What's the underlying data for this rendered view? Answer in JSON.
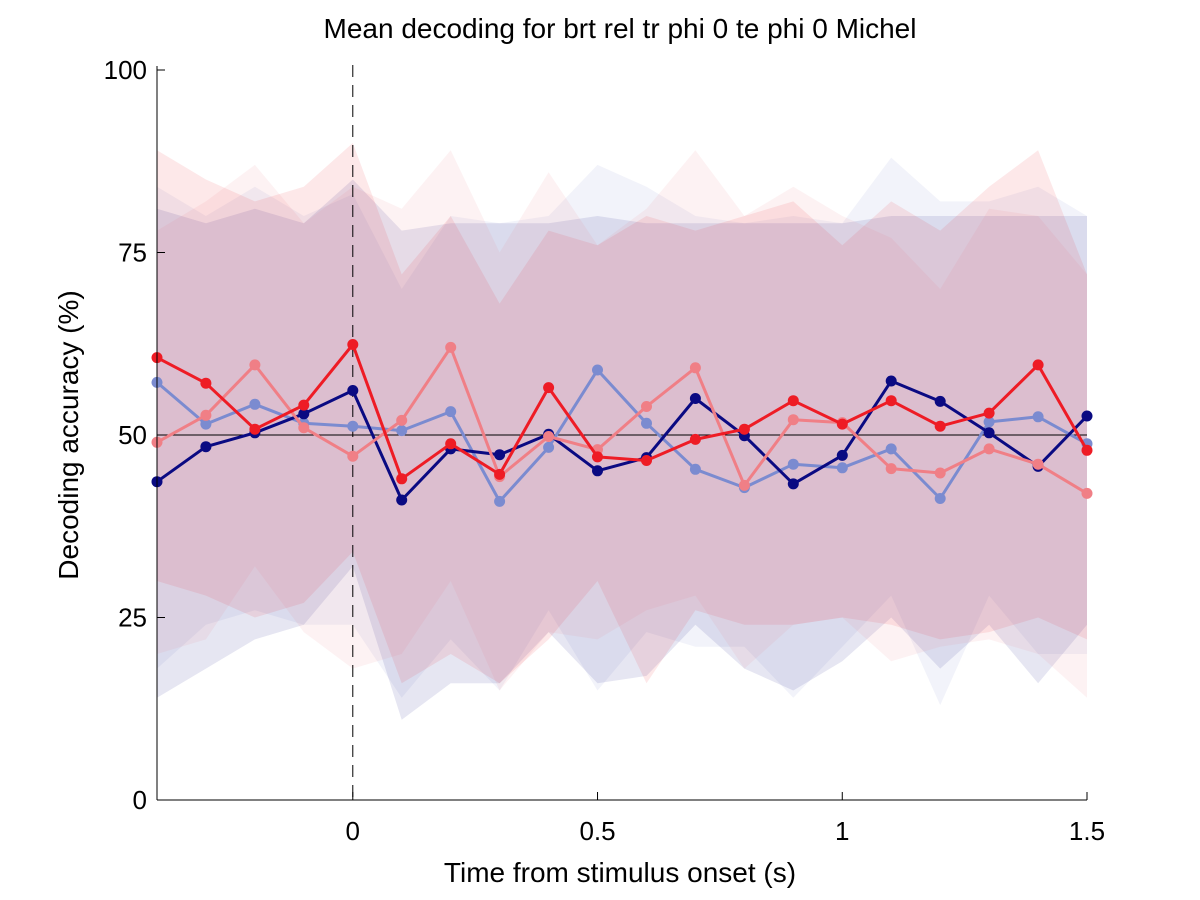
{
  "chart_data": {
    "type": "line",
    "title": "Mean decoding for brt rel tr phi 0 te phi 0  Michel",
    "xlabel": "Time from stimulus onset (s)",
    "ylabel": "Decoding accuracy (%)",
    "xlim": [
      -0.4,
      1.5
    ],
    "ylim": [
      0,
      100
    ],
    "xticks": [
      0,
      0.5,
      1,
      1.5
    ],
    "xtick_labels": [
      "0",
      "0.5",
      "1",
      "1.5"
    ],
    "yticks": [
      0,
      25,
      50,
      75,
      100
    ],
    "ytick_labels": [
      "0",
      "25",
      "50",
      "75",
      "100"
    ],
    "grid": false,
    "chance_level": 50,
    "onset_marker_x": 0,
    "x": [
      -0.4,
      -0.3,
      -0.2,
      -0.1,
      0,
      0.1,
      0.2,
      0.3,
      0.4,
      0.5,
      0.6,
      0.7,
      0.8,
      0.9,
      1.0,
      1.1,
      1.2,
      1.3,
      1.4,
      1.5
    ],
    "series": [
      {
        "color": "#7b8bd0",
        "values": [
          57.2,
          51.5,
          54.2,
          51.6,
          51.2,
          50.6,
          53.2,
          40.9,
          48.3,
          58.9,
          51.6,
          45.3,
          42.8,
          46.0,
          45.5,
          48.1,
          41.3,
          51.8,
          52.5,
          48.8
        ],
        "band_upper": [
          84,
          80,
          84,
          80,
          83,
          70,
          80,
          79,
          80,
          87,
          84,
          80,
          79,
          80,
          79,
          88,
          82,
          82,
          84,
          80
        ],
        "band_lower": [
          18,
          24,
          26,
          24,
          24,
          14,
          22,
          15,
          26,
          15,
          23,
          21,
          21,
          14,
          21,
          28,
          13,
          28,
          20,
          20
        ]
      },
      {
        "color": "#0a0a82",
        "values": [
          43.6,
          48.4,
          50.3,
          52.9,
          56.1,
          41.1,
          48.1,
          47.3,
          50.1,
          45.1,
          46.9,
          55.0,
          49.9,
          43.3,
          47.2,
          57.4,
          54.6,
          50.3,
          45.7,
          52.6
        ],
        "band_upper": [
          81,
          79,
          81,
          79,
          85,
          78,
          79,
          79,
          79,
          80,
          79,
          79,
          79,
          79,
          79,
          80,
          80,
          80,
          80,
          80
        ],
        "band_lower": [
          14,
          18,
          22,
          24,
          32,
          11,
          16,
          16,
          23,
          16,
          17,
          24,
          18,
          15,
          19,
          25,
          18,
          24,
          16,
          24
        ]
      },
      {
        "color": "#f07f86",
        "values": [
          49.0,
          52.7,
          59.6,
          51.0,
          47.1,
          52.0,
          62.0,
          44.3,
          49.8,
          48.0,
          53.9,
          59.2,
          43.1,
          52.1,
          51.7,
          45.4,
          44.8,
          48.1,
          46.0,
          42.0
        ],
        "band_upper": [
          78,
          82,
          87,
          79,
          84,
          81,
          89,
          75,
          86,
          76,
          81,
          89,
          80,
          84,
          80,
          77,
          70,
          81,
          80,
          72
        ],
        "band_lower": [
          20,
          22,
          32,
          23,
          18,
          20,
          30,
          15,
          23,
          22,
          26,
          28,
          18,
          24,
          25,
          19,
          21,
          22,
          20,
          14
        ]
      },
      {
        "color": "#ee1c25",
        "values": [
          60.6,
          57.1,
          50.8,
          54.1,
          62.4,
          44.0,
          48.8,
          44.6,
          56.5,
          47.0,
          46.5,
          49.4,
          50.8,
          54.7,
          51.5,
          54.7,
          51.2,
          53.0,
          59.6,
          47.9
        ],
        "band_upper": [
          89,
          85,
          82,
          84,
          90,
          72,
          80,
          68,
          78,
          76,
          80,
          78,
          80,
          82,
          76,
          82,
          78,
          84,
          89,
          72
        ],
        "band_lower": [
          30,
          28,
          25,
          27,
          34,
          16,
          20,
          16,
          22,
          30,
          16,
          26,
          24,
          24,
          25,
          24,
          22,
          23,
          25,
          22
        ]
      }
    ]
  }
}
